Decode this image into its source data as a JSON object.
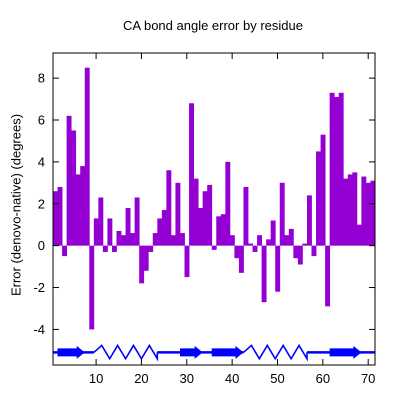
{
  "chart_data": {
    "type": "bar",
    "title": "CA bond angle error by residue",
    "xlabel": "",
    "ylabel": "Error (denovo-native) (degrees)",
    "xlim": [
      0.5,
      71.5
    ],
    "ylim": [
      -5.7,
      9.2
    ],
    "xticks": [
      10,
      20,
      30,
      40,
      50,
      60,
      70
    ],
    "yticks": [
      -4,
      -2,
      0,
      2,
      4,
      6,
      8
    ],
    "grid": false,
    "legend": "none",
    "colors": {
      "bars": "#9400d3",
      "secondary_structure": "#0000ff"
    },
    "series": [
      {
        "x": [
          1,
          2,
          3,
          4,
          5,
          6,
          7,
          8,
          9,
          10,
          11,
          12,
          13,
          14,
          15,
          16,
          17,
          18,
          19,
          20,
          21,
          22,
          23,
          24,
          25,
          26,
          27,
          28,
          29,
          30,
          31,
          32,
          33,
          34,
          35,
          36,
          37,
          38,
          39,
          40,
          41,
          42,
          43,
          44,
          45,
          46,
          47,
          48,
          49,
          50,
          51,
          52,
          53,
          54,
          55,
          56,
          57,
          58,
          59,
          60,
          61,
          62,
          63,
          64,
          65,
          66,
          67,
          68,
          69,
          70,
          71
        ],
        "values": [
          2.6,
          2.8,
          -0.5,
          6.2,
          5.5,
          3.4,
          3.8,
          8.5,
          -4.0,
          1.3,
          2.3,
          -0.3,
          1.3,
          -0.3,
          0.7,
          0.5,
          1.8,
          0.6,
          2.3,
          -1.8,
          -1.2,
          -0.3,
          0.6,
          1.3,
          1.7,
          3.6,
          0.5,
          3.0,
          0.6,
          -1.5,
          6.8,
          3.2,
          1.8,
          2.6,
          2.9,
          -0.2,
          1.4,
          1.5,
          4.0,
          0.5,
          -0.6,
          -1.3,
          2.8,
          0.1,
          -0.3,
          0.5,
          -2.7,
          0.3,
          1.2,
          -2.2,
          3.0,
          0.5,
          0.8,
          -0.6,
          -0.9,
          0.1,
          2.4,
          -0.5,
          4.5,
          5.3,
          -2.9,
          7.3,
          7.1,
          7.3,
          3.2,
          3.4,
          3.5,
          1.0,
          3.3,
          3.0,
          3.1
        ]
      }
    ],
    "secondary_structure": {
      "y": -5.1,
      "strands": [
        [
          2,
          7
        ],
        [
          29,
          33
        ],
        [
          36,
          42
        ],
        [
          62,
          68
        ]
      ],
      "helices": [
        [
          10,
          23
        ],
        [
          43,
          56
        ]
      ]
    }
  }
}
